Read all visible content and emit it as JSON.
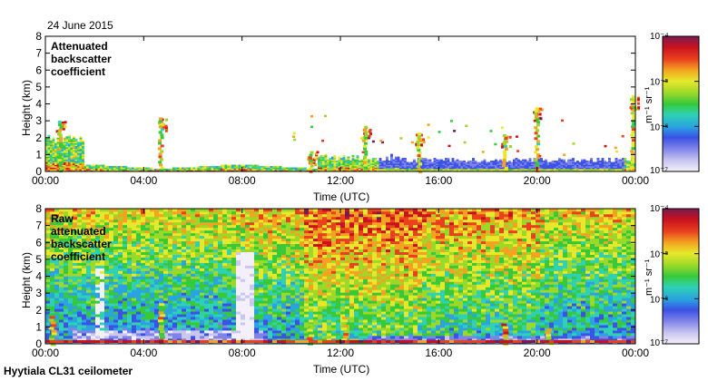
{
  "date_label": "24 June 2015",
  "footer_label": "Hyytiala CL31 ceilometer",
  "colors": {
    "colormap": [
      "#f4f0fa",
      "#c9c6f0",
      "#7f82e8",
      "#3a52e6",
      "#2aa3e0",
      "#2ed1b4",
      "#37c93a",
      "#9bd82a",
      "#e8e82a",
      "#f3a320",
      "#e9411e",
      "#c9121e",
      "#7a1a52"
    ]
  },
  "chart_data": [
    {
      "type": "heatmap",
      "title": "Attenuated backscatter coefficient",
      "xlabel": "Time (UTC)",
      "ylabel": "Height (km)",
      "xlim": [
        0,
        24
      ],
      "ylim": [
        0,
        8
      ],
      "x_ticks": [
        "00:00",
        "04:00",
        "08:00",
        "12:00",
        "16:00",
        "20:00",
        "00:00"
      ],
      "y_ticks": [
        "0",
        "1",
        "2",
        "3",
        "4",
        "5",
        "6",
        "7",
        "8"
      ],
      "colorbar": {
        "label": "m⁻¹ sr⁻¹",
        "scale": "log",
        "range": [
          1e-07,
          0.0001
        ],
        "ticks": [
          "10⁻⁴",
          "10⁻⁵",
          "10⁻⁶",
          "10⁻⁷"
        ]
      },
      "features": [
        {
          "time_h": 0.6,
          "top_km": 3.0
        },
        {
          "time_h": 4.7,
          "top_km": 3.2
        },
        {
          "time_h": 10.8,
          "top_km": 1.2
        },
        {
          "time_h": 13.0,
          "top_km": 2.7
        },
        {
          "time_h": 15.2,
          "top_km": 2.3
        },
        {
          "time_h": 18.7,
          "top_km": 2.2
        },
        {
          "time_h": 20.0,
          "top_km": 3.8
        },
        {
          "time_h": 23.9,
          "top_km": 4.5
        }
      ]
    },
    {
      "type": "heatmap",
      "title": "Raw attenuated backscatter coefficient",
      "xlabel": "Time (UTC)",
      "ylabel": "Height (km)",
      "xlim": [
        0,
        24
      ],
      "ylim": [
        0,
        8
      ],
      "x_ticks": [
        "00:00",
        "04:00",
        "08:00",
        "12:00",
        "16:00",
        "20:00",
        "00:00"
      ],
      "y_ticks": [
        "0",
        "1",
        "2",
        "3",
        "4",
        "5",
        "6",
        "7",
        "8"
      ],
      "colorbar": {
        "label": "m⁻¹ sr⁻¹",
        "scale": "log",
        "range": [
          1e-07,
          0.0001
        ],
        "ticks": [
          "10⁻⁴",
          "10⁻⁵",
          "10⁻⁶",
          "10⁻⁷"
        ]
      }
    }
  ]
}
